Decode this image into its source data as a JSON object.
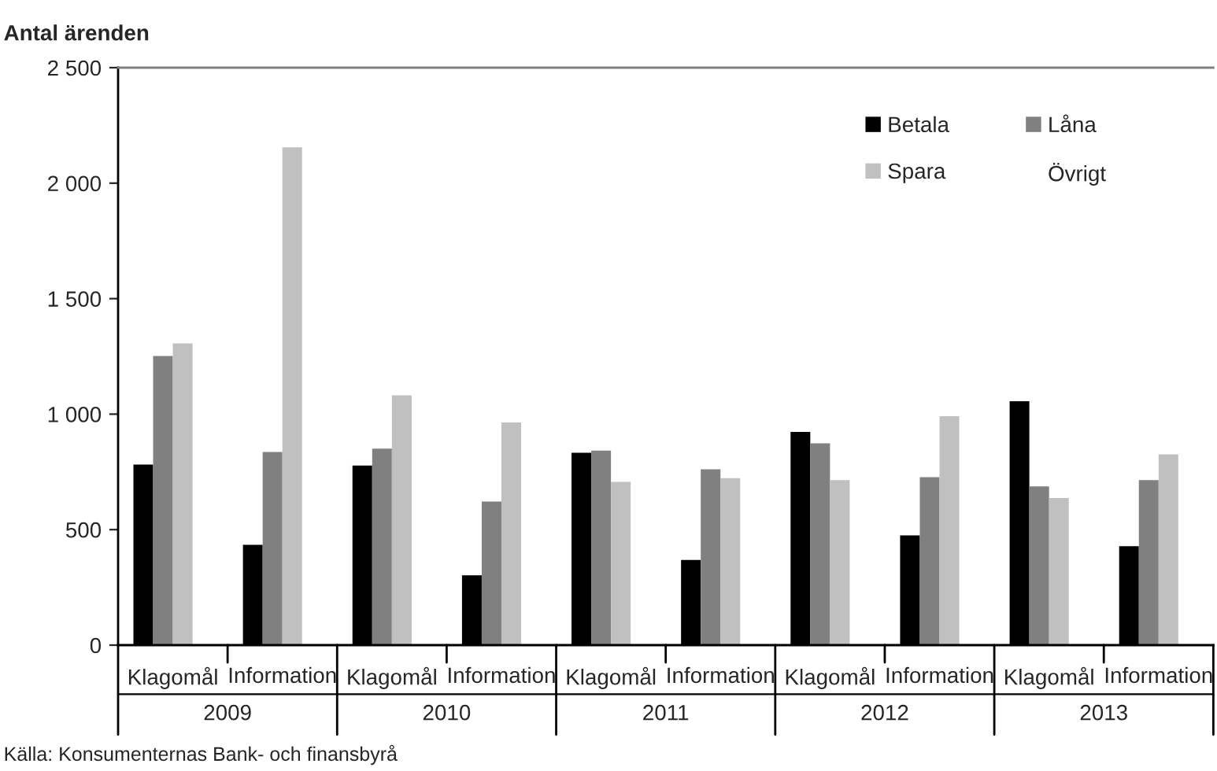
{
  "chart_data": {
    "type": "bar",
    "ylabel": "Antal ärenden",
    "categories": [
      "Klagomål",
      "Information",
      "Klagomål",
      "Information",
      "Klagomål",
      "Information",
      "Klagomål",
      "Information",
      "Klagomål",
      "Information"
    ],
    "series": [
      {
        "name": "Betala",
        "color": "#000000",
        "values": [
          782,
          434,
          777,
          302,
          833,
          369,
          923,
          475,
          1056,
          428
        ]
      },
      {
        "name": "Låna",
        "color": "#808080",
        "values": [
          1252,
          836,
          851,
          622,
          842,
          761,
          874,
          727,
          687,
          714
        ]
      },
      {
        "name": "Spara",
        "color": "#c0c0c0",
        "values": [
          1306,
          2155,
          1081,
          964,
          707,
          723,
          714,
          991,
          637,
          826
        ]
      },
      {
        "name": "Övrigt",
        "values": [
          null,
          null,
          null,
          null,
          null,
          null,
          null,
          null,
          null,
          null
        ]
      }
    ],
    "ylim": [
      0,
      2500
    ],
    "yticks": [
      0,
      500,
      {
        "value": 1000,
        "label": "1 000"
      },
      {
        "value": 1500,
        "label": "1 500"
      },
      {
        "value": 2000,
        "label": "2 000"
      },
      {
        "value": 2500,
        "label": "2 500"
      }
    ],
    "grid": false,
    "legend": "top right",
    "annotations": [
      "2009",
      "2010",
      "2011",
      "2012",
      "2013",
      "Källa: Konsumenternas Bank- och finansbyrå"
    ]
  }
}
